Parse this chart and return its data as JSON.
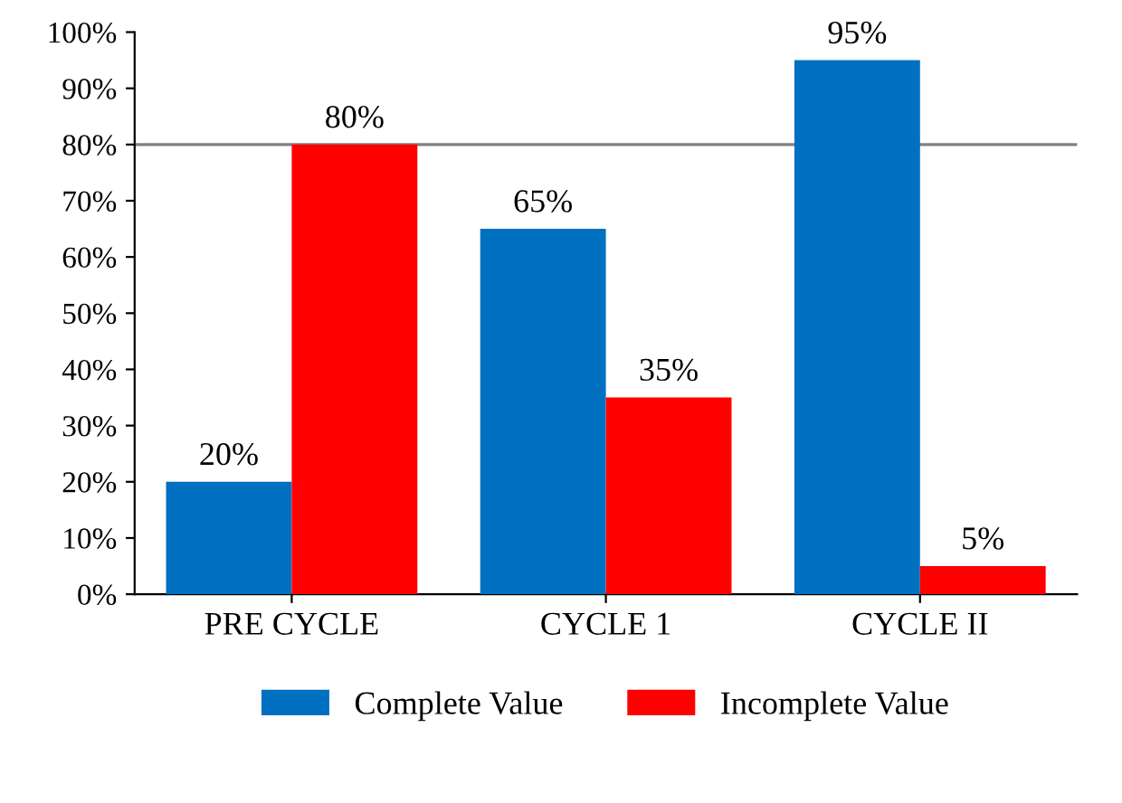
{
  "chart_data": {
    "type": "bar",
    "categories": [
      "PRE CYCLE",
      "CYCLE 1",
      "CYCLE II"
    ],
    "series": [
      {
        "name": "Complete Value",
        "color": "#0070c0",
        "values": [
          20,
          65,
          95
        ]
      },
      {
        "name": "Incomplete Value",
        "color": "#ff0000",
        "values": [
          80,
          35,
          5
        ]
      }
    ],
    "ylim": [
      0,
      100
    ],
    "yticks": [
      {
        "value": 0,
        "label": "0%"
      },
      {
        "value": 10,
        "label": "10%"
      },
      {
        "value": 20,
        "label": "20%"
      },
      {
        "value": 30,
        "label": "30%"
      },
      {
        "value": 40,
        "label": "40%"
      },
      {
        "value": 50,
        "label": "50%"
      },
      {
        "value": 60,
        "label": "60%"
      },
      {
        "value": 70,
        "label": "70%"
      },
      {
        "value": 80,
        "label": "80%"
      },
      {
        "value": 90,
        "label": "90%"
      },
      {
        "value": 100,
        "label": "100%"
      }
    ],
    "value_labels": [
      [
        "20%",
        "65%",
        "95%"
      ],
      [
        "80%",
        "35%",
        "5%"
      ]
    ],
    "ref_lines": [
      {
        "axis": "y",
        "value": 80,
        "color": "#808080"
      }
    ],
    "legend": "bottom",
    "grid": false
  }
}
